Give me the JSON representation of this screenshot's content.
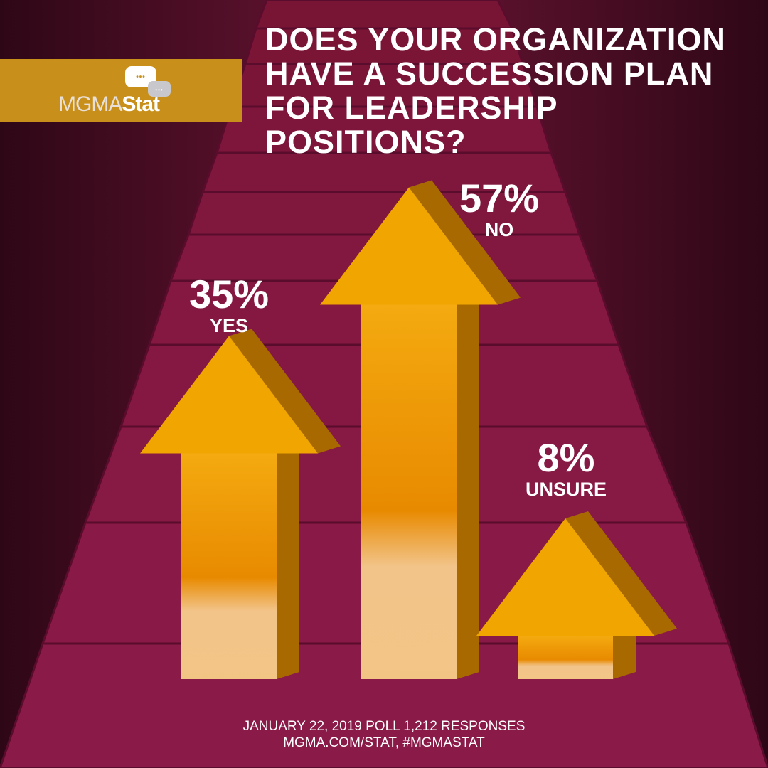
{
  "title": "Does your organization have a succession plan for leadership positions?",
  "logo": {
    "text_light": "MGMA",
    "text_bold": "Stat"
  },
  "chart_data": {
    "type": "bar",
    "title": "Does your organization have a succession plan for leadership positions?",
    "categories": [
      "YES",
      "NO",
      "UNSURE"
    ],
    "values": [
      35,
      57,
      8
    ],
    "labels": [
      "35%",
      "57%",
      "8%"
    ],
    "unit": "%",
    "bar_style": "3d-up-arrow",
    "bar_color": "#f0a500"
  },
  "footer": {
    "line1": "JANUARY 22, 2019 POLL  1,212 RESPONSES",
    "line2": "MGMA.COM/STAT, #MGMASTAT"
  },
  "colors": {
    "background": "#8a1a4e",
    "logo_band": "#c8901a",
    "arrow": "#f0a500"
  }
}
